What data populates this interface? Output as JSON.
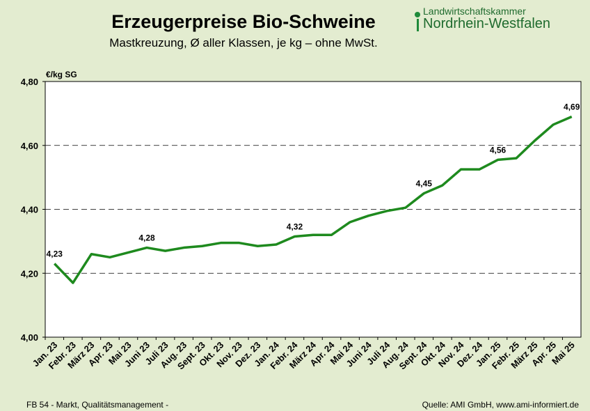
{
  "header": {
    "title": "Erzeugerpreise Bio-Schweine",
    "subtitle": "Mastkreuzung, Ø aller Klassen, je kg – ohne MwSt."
  },
  "logo": {
    "line1": "Landwirtschaftskammer",
    "line2": "Nordrhein-Westfalen"
  },
  "footer": {
    "left": "FB 54 - Markt, Qualitätsmanagement -",
    "right": "Quelle: AMI GmbH, www.ami-informiert.de"
  },
  "colors": {
    "line": "#1e8a1e",
    "background": "#e3ecd0",
    "plot": "#ffffff"
  },
  "chart_data": {
    "type": "line",
    "ylabel": "€/kg SG",
    "ylim": [
      4.0,
      4.8
    ],
    "yticks": [
      "4,00",
      "4,20",
      "4,40",
      "4,60",
      "4,80"
    ],
    "ytick_values": [
      4.0,
      4.2,
      4.4,
      4.6,
      4.8
    ],
    "grid": "horizontal dashed",
    "categories": [
      "Jan. 23",
      "Febr. 23",
      "März 23",
      "Apr. 23",
      "Mai 23",
      "Juni 23",
      "Juli 23",
      "Aug. 23",
      "Sept. 23",
      "Okt. 23",
      "Nov. 23",
      "Dez. 23",
      "Jan. 24",
      "Febr. 24",
      "März 24",
      "Apr. 24",
      "Mai 24",
      "Juni 24",
      "Juli 24",
      "Aug. 24",
      "Sept. 24",
      "Okt. 24",
      "Nov. 24",
      "Dez. 24",
      "Jan. 25",
      "Febr. 25",
      "März 25",
      "Apr. 25",
      "Mai 25"
    ],
    "values": [
      4.23,
      4.17,
      4.26,
      4.25,
      4.265,
      4.28,
      4.27,
      4.28,
      4.285,
      4.295,
      4.295,
      4.285,
      4.29,
      4.315,
      4.32,
      4.32,
      4.36,
      4.38,
      4.395,
      4.405,
      4.45,
      4.475,
      4.525,
      4.525,
      4.555,
      4.56,
      4.615,
      4.665,
      4.69
    ],
    "annotations": [
      {
        "index": 0,
        "text": "4,23"
      },
      {
        "index": 5,
        "text": "4,28"
      },
      {
        "index": 13,
        "text": "4,32"
      },
      {
        "index": 20,
        "text": "4,45"
      },
      {
        "index": 24,
        "text": "4,56"
      },
      {
        "index": 28,
        "text": "4,69"
      }
    ]
  }
}
